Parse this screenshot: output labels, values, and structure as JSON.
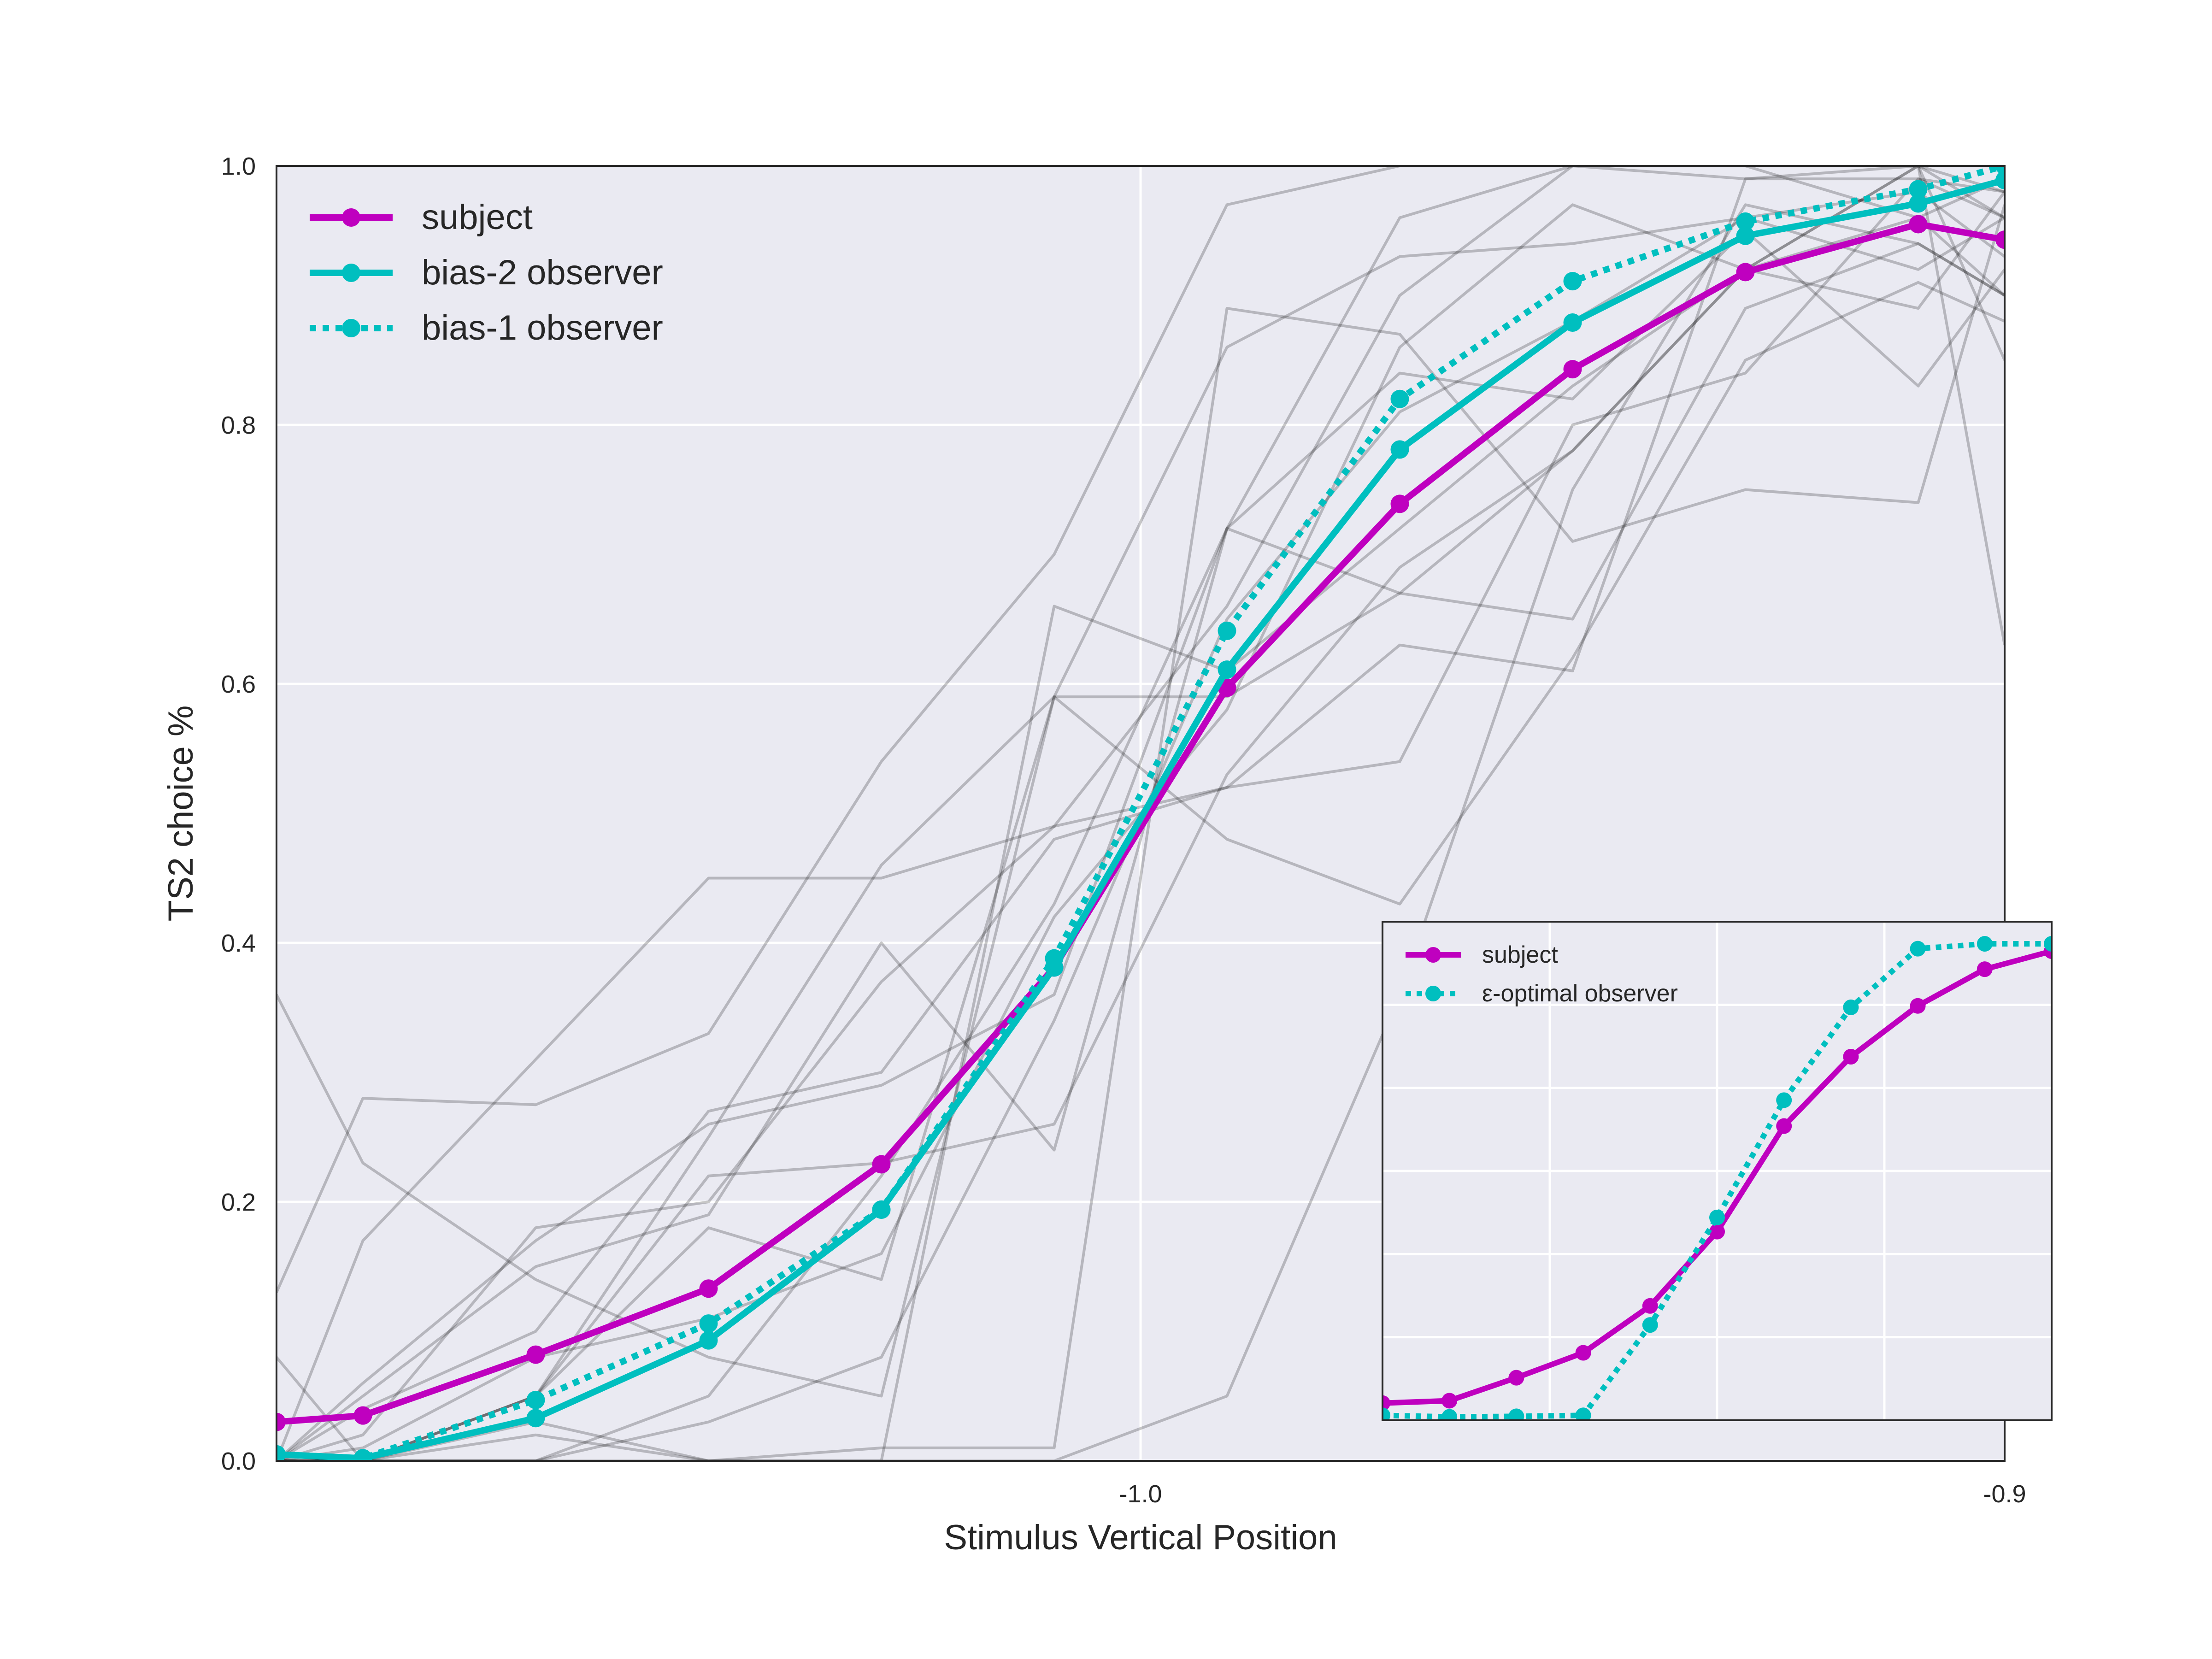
{
  "chart_data": [
    {
      "type": "line",
      "title": "",
      "xlabel": "Stimulus Vertical Position",
      "ylabel": "TS2 choice %",
      "xlim": [
        -1.1,
        -0.9
      ],
      "ylim": [
        0.0,
        1.0
      ],
      "x_ticks": [
        -1.0,
        -0.9
      ],
      "x_tick_labels": [
        "-1.0",
        "-0.9"
      ],
      "y_ticks": [
        0.0,
        0.2,
        0.4,
        0.6,
        0.8,
        1.0
      ],
      "y_tick_labels": [
        "0.0",
        "0.2",
        "0.4",
        "0.6",
        "0.8",
        "1.0"
      ],
      "grid": true,
      "legend_position": "top-left",
      "x": [
        -1.1,
        -1.09,
        -1.07,
        -1.05,
        -1.03,
        -1.01,
        -0.99,
        -0.97,
        -0.95,
        -0.93,
        -0.91,
        -0.9
      ],
      "series": [
        {
          "name": "subject",
          "color": "#bf00bf",
          "style": "solid",
          "marker": true,
          "values": [
            0.03,
            0.035,
            0.082,
            0.133,
            0.229,
            0.381,
            0.597,
            0.739,
            0.843,
            0.918,
            0.955,
            0.943
          ]
        },
        {
          "name": "bias-2 observer",
          "color": "#00bfbf",
          "style": "solid",
          "marker": true,
          "values": [
            0.005,
            0.002,
            0.033,
            0.093,
            0.194,
            0.381,
            0.611,
            0.781,
            0.879,
            0.946,
            0.971,
            0.989
          ]
        },
        {
          "name": "bias-1 observer",
          "color": "#00bfbf",
          "style": "dotted",
          "marker": true,
          "values": [
            0.005,
            0.002,
            0.047,
            0.106,
            0.194,
            0.388,
            0.641,
            0.82,
            0.911,
            0.957,
            0.982,
            1.0
          ]
        }
      ],
      "individual_subjects_color": "#000000",
      "individual_subjects": [
        [
          0.36,
          0.23,
          0.14,
          0.08,
          0.05,
          0.59,
          0.86,
          0.93,
          0.94,
          0.96,
          0.98,
          0.93
        ],
        [
          0.13,
          0.28,
          0.275,
          0.33,
          0.54,
          0.7,
          0.97,
          1.0,
          1.0,
          0.99,
          0.99,
          0.98
        ],
        [
          0.0,
          0.17,
          0.31,
          0.45,
          0.45,
          0.49,
          0.52,
          0.54,
          0.8,
          0.84,
          0.99,
          0.96
        ],
        [
          0.08,
          0.0,
          0.0,
          0.0,
          0.0,
          0.0,
          0.05,
          0.36,
          0.75,
          0.97,
          0.94,
          0.9
        ],
        [
          0.0,
          0.04,
          0.1,
          0.27,
          0.3,
          0.48,
          0.52,
          0.63,
          0.61,
          0.99,
          1.0,
          0.98
        ],
        [
          0.0,
          0.0,
          0.02,
          0.0,
          0.01,
          0.01,
          0.89,
          0.87,
          0.71,
          0.75,
          0.74,
          0.97
        ],
        [
          0.0,
          0.06,
          0.17,
          0.26,
          0.29,
          0.36,
          0.72,
          0.96,
          1.0,
          1.0,
          0.96,
          0.9
        ],
        [
          0.0,
          0.02,
          0.18,
          0.2,
          0.37,
          0.49,
          0.66,
          0.9,
          1.0,
          1.0,
          1.0,
          0.85
        ],
        [
          0.0,
          0.05,
          0.15,
          0.19,
          0.4,
          0.24,
          0.72,
          0.84,
          0.82,
          0.95,
          0.83,
          0.92
        ],
        [
          0.0,
          0.0,
          0.03,
          0.0,
          0.0,
          0.66,
          0.61,
          0.72,
          0.83,
          0.92,
          1.0,
          0.63
        ],
        [
          0.0,
          0.0,
          0.0,
          0.05,
          0.22,
          0.43,
          0.72,
          0.67,
          0.65,
          0.89,
          0.94,
          0.9
        ],
        [
          0.0,
          0.01,
          0.08,
          0.11,
          0.16,
          0.42,
          0.58,
          0.86,
          0.97,
          0.92,
          0.96,
          0.99
        ],
        [
          0.0,
          0.0,
          0.05,
          0.25,
          0.46,
          0.59,
          0.48,
          0.43,
          0.62,
          0.85,
          0.91,
          0.88
        ],
        [
          0.0,
          0.0,
          0.0,
          0.03,
          0.08,
          0.34,
          0.65,
          0.81,
          0.88,
          0.96,
          0.92,
          0.96
        ],
        [
          0.0,
          0.0,
          0.05,
          0.22,
          0.23,
          0.26,
          0.53,
          0.69,
          0.78,
          0.92,
          1.0,
          0.96
        ],
        [
          0.0,
          0.0,
          0.05,
          0.18,
          0.14,
          0.59,
          0.59,
          0.67,
          0.78,
          0.92,
          0.89,
          0.98
        ]
      ]
    },
    {
      "type": "line",
      "title": "",
      "inset": true,
      "grid": true,
      "legend_position": "top-left",
      "x": [
        0,
        1,
        2,
        3,
        4,
        5,
        6,
        7,
        8,
        9,
        10,
        11
      ],
      "series": [
        {
          "name": "subject",
          "color": "#bf00bf",
          "style": "solid",
          "marker": true,
          "values": [
            0.03,
            0.035,
            0.082,
            0.133,
            0.229,
            0.381,
            0.597,
            0.739,
            0.843,
            0.918,
            0.955,
            0.943
          ]
        },
        {
          "name": "ε-optimal observer",
          "color": "#00bfbf",
          "style": "dotted",
          "marker": true,
          "values": [
            0.005,
            0.002,
            0.003,
            0.005,
            0.19,
            0.41,
            0.65,
            0.84,
            0.96,
            0.97,
            0.97,
            0.975
          ]
        }
      ]
    }
  ]
}
